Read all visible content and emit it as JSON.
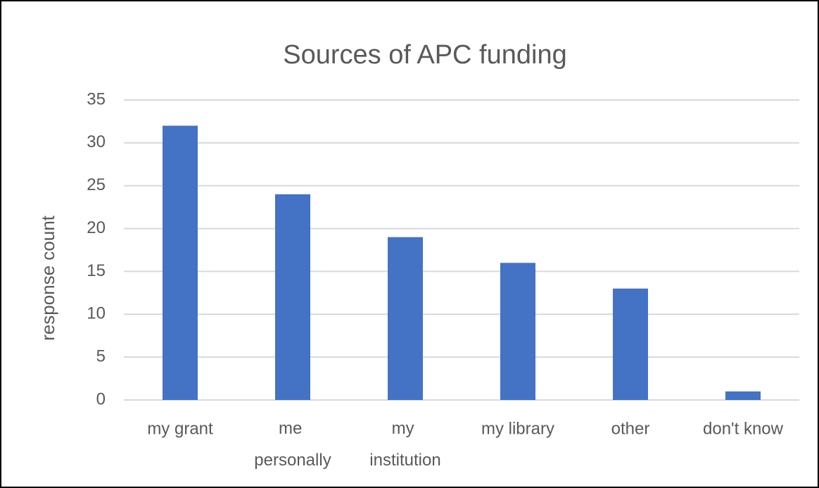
{
  "chart_data": {
    "type": "bar",
    "title": "Sources of APC funding",
    "y_label": "response count",
    "categories": [
      "my grant",
      "me personally",
      "my institution",
      "my library",
      "other",
      "don't know"
    ],
    "values": [
      32,
      24,
      19,
      16,
      13,
      1
    ],
    "color": "#4472c4",
    "ylim": [
      0,
      35
    ],
    "yticks": [
      0,
      5,
      10,
      15,
      20,
      25,
      30,
      35
    ],
    "grid": true
  }
}
